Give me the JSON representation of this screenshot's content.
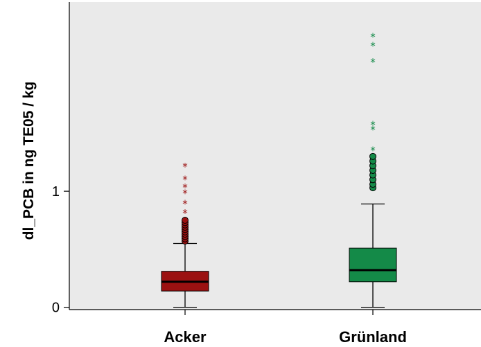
{
  "chart_data": {
    "type": "box",
    "ylabel": "dl_PCB in ng TE05 / kg",
    "xlabel": "",
    "ylim": [
      -0.02,
      2.63
    ],
    "yticks": [
      0,
      1
    ],
    "grid": false,
    "background_color": "#eaeaea",
    "categories": [
      "Acker",
      "Grünland"
    ],
    "boxes": [
      {
        "category": "Acker",
        "color": "#9b1111",
        "whisker_low": 0.0,
        "q1": 0.14,
        "median": 0.22,
        "q3": 0.31,
        "whisker_high": 0.55,
        "outliers": [
          0.57,
          0.59,
          0.61,
          0.63,
          0.65,
          0.67,
          0.69,
          0.71,
          0.73,
          0.75
        ],
        "extremes": [
          0.81,
          0.89,
          0.98,
          1.03,
          1.1,
          1.21
        ]
      },
      {
        "category": "Grünland",
        "color": "#148a48",
        "whisker_low": 0.0,
        "q1": 0.22,
        "median": 0.32,
        "q3": 0.51,
        "whisker_high": 0.89,
        "outliers": [
          1.03,
          1.06,
          1.1,
          1.14,
          1.18,
          1.22,
          1.26,
          1.3
        ],
        "extremes": [
          1.35,
          1.53,
          1.57,
          2.11,
          2.25,
          2.33
        ]
      }
    ]
  }
}
